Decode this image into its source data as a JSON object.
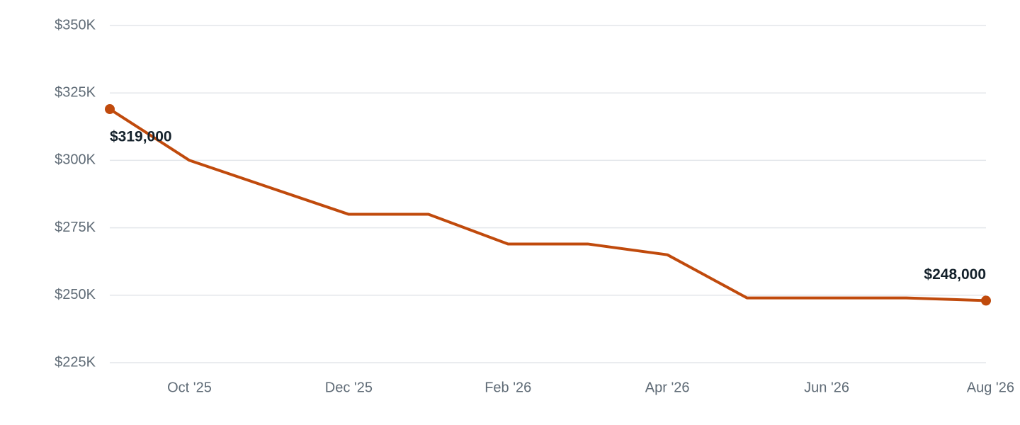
{
  "chart_data": {
    "type": "line",
    "categories": [
      null,
      "Oct '25",
      null,
      "Dec '25",
      null,
      "Feb '26",
      null,
      "Apr '26",
      null,
      "Jun '26",
      null,
      "Aug '26"
    ],
    "series": [
      {
        "color": "#c04a0c",
        "values": [
          319000,
          300000,
          290000,
          280000,
          280000,
          269000,
          269000,
          265000,
          249000,
          249000,
          249000,
          248000
        ],
        "value_labels": [
          "$319,000",
          null,
          null,
          null,
          null,
          null,
          null,
          null,
          null,
          null,
          null,
          "$248,000"
        ]
      }
    ],
    "ylim": [
      225000,
      350000
    ],
    "yticks": [
      {
        "value": 225000,
        "label": "$225K"
      },
      {
        "value": 250000,
        "label": "$250K"
      },
      {
        "value": 275000,
        "label": "$275K"
      },
      {
        "value": 300000,
        "label": "$300K"
      },
      {
        "value": 325000,
        "label": "$325K"
      },
      {
        "value": 350000,
        "label": "$350K"
      }
    ],
    "grid": true
  }
}
